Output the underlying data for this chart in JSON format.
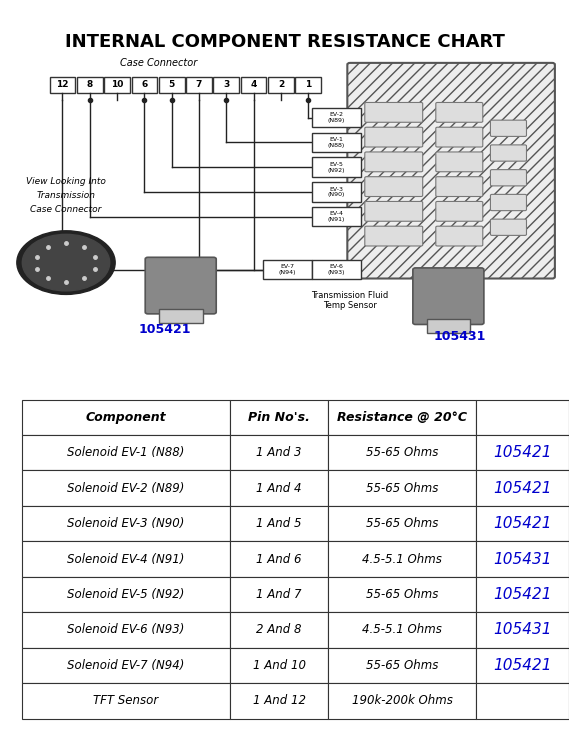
{
  "title": "INTERNAL COMPONENT RESISTANCE CHART",
  "title_fontsize": 13,
  "title_fontweight": "bold",
  "background_color": "#ffffff",
  "table_headers": [
    "Component",
    "Pin No's.",
    "Resistance @ 20°C",
    ""
  ],
  "table_rows": [
    [
      "Solenoid EV-1 (N88)",
      "1 And 3",
      "55-65 Ohms",
      "105421"
    ],
    [
      "Solenoid EV-2 (N89)",
      "1 And 4",
      "55-65 Ohms",
      "105421"
    ],
    [
      "Solenoid EV-3 (N90)",
      "1 And 5",
      "55-65 Ohms",
      "105421"
    ],
    [
      "Solenoid EV-4 (N91)",
      "1 And 6",
      "4.5-5.1 Ohms",
      "105431"
    ],
    [
      "Solenoid EV-5 (N92)",
      "1 And 7",
      "55-65 Ohms",
      "105421"
    ],
    [
      "Solenoid EV-6 (N93)",
      "2 And 8",
      "4.5-5.1 Ohms",
      "105431"
    ],
    [
      "Solenoid EV-7 (N94)",
      "1 And 10",
      "55-65 Ohms",
      "105421"
    ],
    [
      "TFT Sensor",
      "1 And 12",
      "190k-200k Ohms",
      ""
    ]
  ],
  "part_color": "#0000cc",
  "table_text_color": "#000000",
  "header_bg": "#ffffff",
  "row_bg": "#ffffff",
  "connector_pins": [
    "12",
    "8",
    "10",
    "6",
    "5",
    "7",
    "3",
    "4",
    "2",
    "1"
  ],
  "ev_labels": [
    "EV-2\n(N89)",
    "EV-1\n(N88)",
    "EV-5\n(N92)",
    "EV-3\n(N90)",
    "EV-4\n(N91)"
  ],
  "ev_labels_bottom": [
    "EV-7\n(N94)",
    "EV-6\n(N93)"
  ],
  "label_105421": "105421",
  "label_105431": "105431",
  "diagram_bg": "#f5f5f0"
}
